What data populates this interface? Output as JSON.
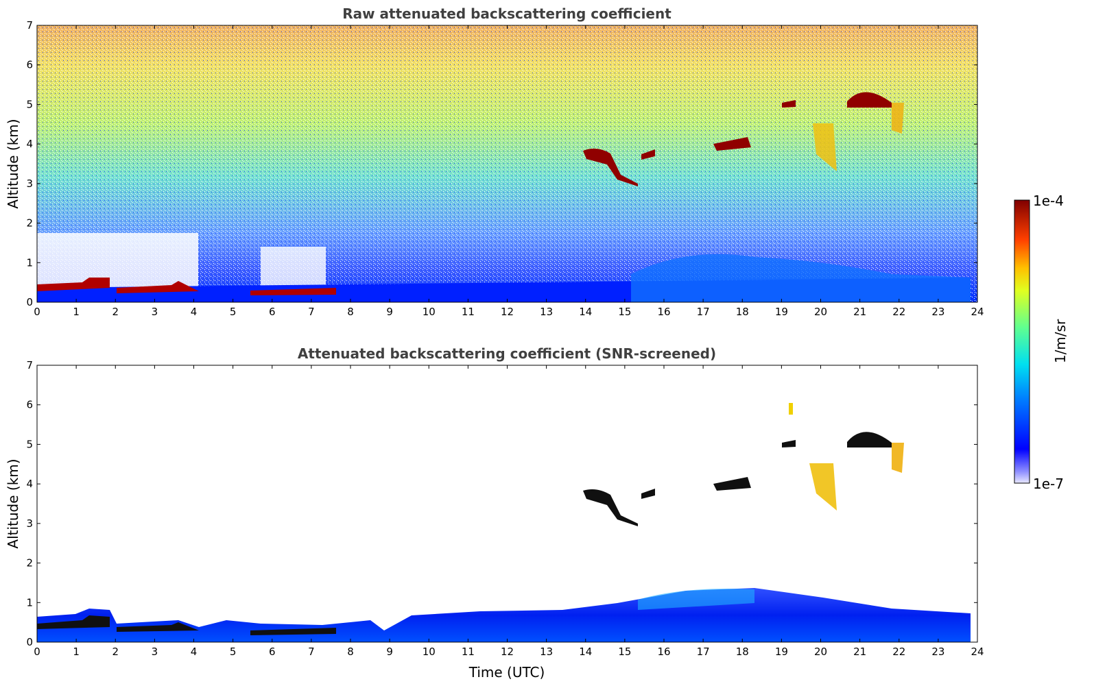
{
  "chart_data": [
    {
      "type": "heatmap",
      "title": "Raw attenuated backscattering coefficient",
      "xlabel": "",
      "ylabel": "Altitude (km)",
      "xlim": [
        0,
        24
      ],
      "ylim": [
        0,
        7
      ],
      "xticks": [
        "0",
        "1",
        "2",
        "3",
        "4",
        "5",
        "6",
        "7",
        "8",
        "9",
        "10",
        "11",
        "12",
        "13",
        "14",
        "15",
        "16",
        "17",
        "18",
        "19",
        "20",
        "21",
        "22",
        "23",
        "24"
      ],
      "yticks": [
        "0",
        "1",
        "2",
        "3",
        "4",
        "5",
        "6",
        "7"
      ],
      "features": [
        {
          "name": "aerosol layer",
          "time": [
            0,
            24
          ],
          "altitude": [
            0,
            0.6
          ],
          "level": "1e-6"
        },
        {
          "name": "low cloud",
          "time": [
            0,
            4.1
          ],
          "altitude": [
            0.25,
            0.65
          ],
          "level": "1e-4"
        },
        {
          "name": "low cloud",
          "time": [
            5.5,
            7.3
          ],
          "altitude": [
            0.2,
            0.35
          ],
          "level": "1e-4"
        },
        {
          "name": "mid-level cloud",
          "time": [
            14,
            22.5
          ],
          "altitude": [
            2.9,
            5.6
          ],
          "level": "1e-4"
        }
      ]
    },
    {
      "type": "heatmap",
      "title": "Attenuated backscattering coefficient (SNR-screened)",
      "xlabel": "Time (UTC)",
      "ylabel": "Altitude (km)",
      "xlim": [
        0,
        24
      ],
      "ylim": [
        0,
        7
      ],
      "xticks": [
        "0",
        "1",
        "2",
        "3",
        "4",
        "5",
        "6",
        "7",
        "8",
        "9",
        "10",
        "11",
        "12",
        "13",
        "14",
        "15",
        "16",
        "17",
        "18",
        "19",
        "20",
        "21",
        "22",
        "23",
        "24"
      ],
      "yticks": [
        "0",
        "1",
        "2",
        "3",
        "4",
        "5",
        "6",
        "7"
      ],
      "features": [
        {
          "name": "boundary layer",
          "time": [
            0,
            23.8
          ],
          "altitude": [
            0,
            1.3
          ],
          "level": "1e-6"
        },
        {
          "name": "mid-level cloud",
          "time": [
            14,
            22.5
          ],
          "altitude": [
            2.9,
            6.1
          ],
          "level": "1e-4"
        }
      ]
    }
  ],
  "colorbar": {
    "label": "1/m/sr",
    "max_label": "1e-4",
    "min_label": "1e-7",
    "colormap": "jet"
  }
}
